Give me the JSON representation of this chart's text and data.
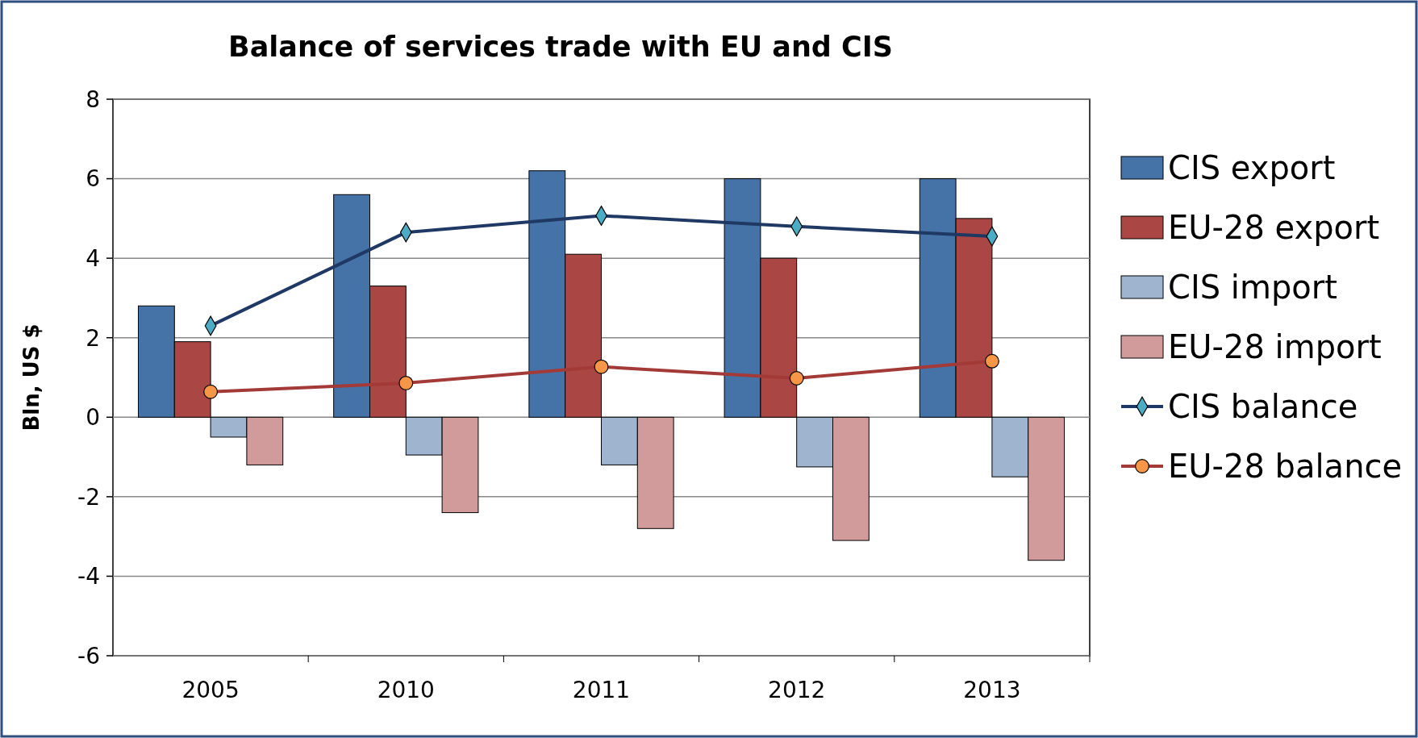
{
  "chart_data": {
    "type": "bar",
    "title": "Balance of services trade with EU and CIS",
    "ylabel": "Bln, US $",
    "categories": [
      "2005",
      "2010",
      "2011",
      "2012",
      "2013"
    ],
    "series": [
      {
        "name": "CIS export",
        "color": "#4572a7",
        "values": [
          2.8,
          5.6,
          6.2,
          6.0,
          6.0
        ]
      },
      {
        "name": "EU-28 export",
        "color": "#aa4643",
        "values": [
          1.9,
          3.3,
          4.1,
          4.0,
          5.0
        ]
      },
      {
        "name": "CIS import",
        "color": "#9fb4cf",
        "values": [
          -0.5,
          -0.95,
          -1.2,
          -1.25,
          -1.5
        ]
      },
      {
        "name": "EU-28 import",
        "color": "#d09b9a",
        "values": [
          -1.2,
          -2.4,
          -2.8,
          -3.1,
          -3.6
        ]
      },
      {
        "name": "CIS balance",
        "type": "line",
        "color": "#1f3864",
        "marker": "diamond",
        "colors": [
          "#4bacc6",
          "#4bacc6",
          "#4bacc6",
          "#4bacc6",
          "#4bacc6"
        ],
        "values": [
          2.3,
          4.65,
          5.07,
          4.8,
          4.55
        ]
      },
      {
        "name": "EU-28 balance",
        "type": "line",
        "color": "#a33a37",
        "marker": "circle",
        "colors": [
          "#f79646",
          "#f79646",
          "#f79646",
          "#f79646",
          "#f79646"
        ],
        "values": [
          0.64,
          0.86,
          1.27,
          0.98,
          1.41
        ]
      }
    ],
    "ylim": [
      -6,
      8
    ],
    "yticks": [
      -6,
      -4,
      -2,
      0,
      2,
      4,
      6,
      8
    ],
    "grid": "y",
    "legend": "right"
  }
}
